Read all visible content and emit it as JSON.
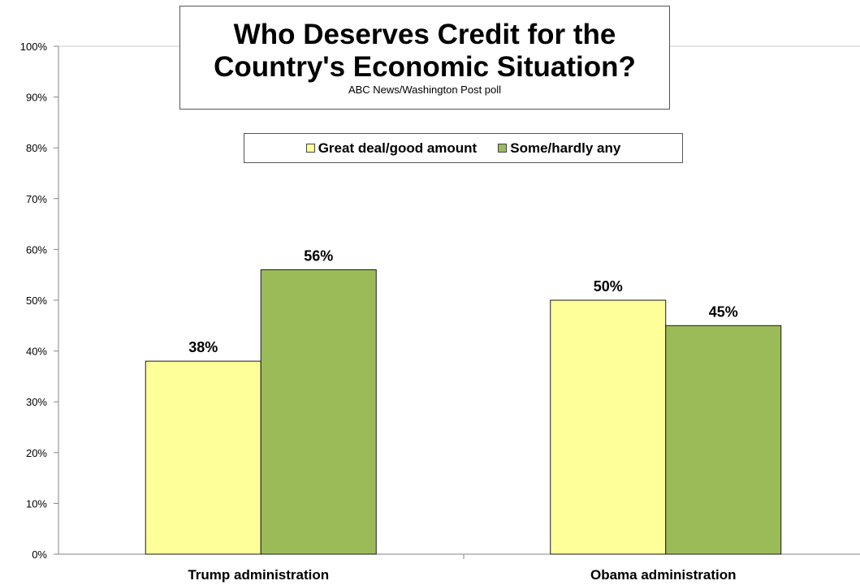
{
  "chart_data": {
    "type": "bar",
    "title_lines": [
      "Who Deserves Credit for the",
      "Country's Economic Situation?"
    ],
    "subtitle": "ABC News/Washington  Post poll",
    "categories": [
      "Trump administration",
      "Obama administration"
    ],
    "series": [
      {
        "name": "Great deal/good amount",
        "values": [
          38,
          50
        ],
        "labels": [
          "38%",
          "50%"
        ],
        "color": "#ffff99"
      },
      {
        "name": "Some/hardly any",
        "values": [
          56,
          45
        ],
        "labels": [
          "56%",
          "45%"
        ],
        "color": "#9bbb59"
      }
    ],
    "y_ticks": [
      "0%",
      "10%",
      "20%",
      "30%",
      "40%",
      "50%",
      "60%",
      "70%",
      "80%",
      "90%",
      "100%"
    ],
    "ylim": [
      0,
      100
    ],
    "grid": false,
    "legend_position": "top-center"
  }
}
